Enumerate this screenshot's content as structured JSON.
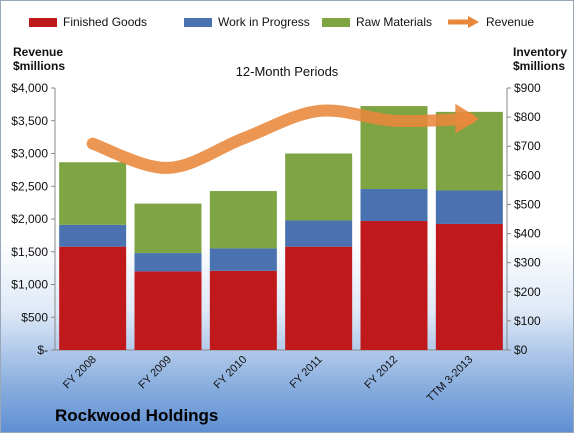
{
  "chart_data": {
    "type": "bar",
    "title": "12-Month Periods",
    "left_axis_title": [
      "Revenue",
      "$millions"
    ],
    "right_axis_title": [
      "Inventory",
      "$millions"
    ],
    "categories": [
      "FY 2008",
      "FY 2009",
      "FY 2010",
      "FY 2011",
      "FY 2012",
      "TTM 3-2013"
    ],
    "series": [
      {
        "name": "Finished Goods",
        "axis": "right",
        "values": [
          355,
          270,
          272,
          355,
          443,
          433
        ],
        "color": "#c0191c"
      },
      {
        "name": "Work in Progress",
        "axis": "right",
        "values": [
          75,
          63,
          77,
          90,
          110,
          115
        ],
        "color": "#4a72b0"
      },
      {
        "name": "Raw Materials",
        "axis": "right",
        "values": [
          215,
          170,
          197,
          230,
          285,
          270
        ],
        "color": "#7ea444"
      }
    ],
    "line_series": {
      "name": "Revenue",
      "axis": "left",
      "values": [
        3150,
        2780,
        3230,
        3650,
        3500,
        3530
      ],
      "color": "#e8873a"
    },
    "left_axis": {
      "min": 0,
      "max": 4000,
      "step": 500,
      "ticks": [
        "$-",
        "$500",
        "$1,000",
        "$1,500",
        "$2,000",
        "$2,500",
        "$3,000",
        "$3,500",
        "$4,000"
      ]
    },
    "right_axis": {
      "min": 0,
      "max": 900,
      "step": 100,
      "ticks": [
        "$0",
        "$100",
        "$200",
        "$300",
        "$400",
        "$500",
        "$600",
        "$700",
        "$800",
        "$900"
      ]
    },
    "legend_placement": "top",
    "grid": false
  },
  "footer": {
    "company": "Rockwood Holdings"
  }
}
